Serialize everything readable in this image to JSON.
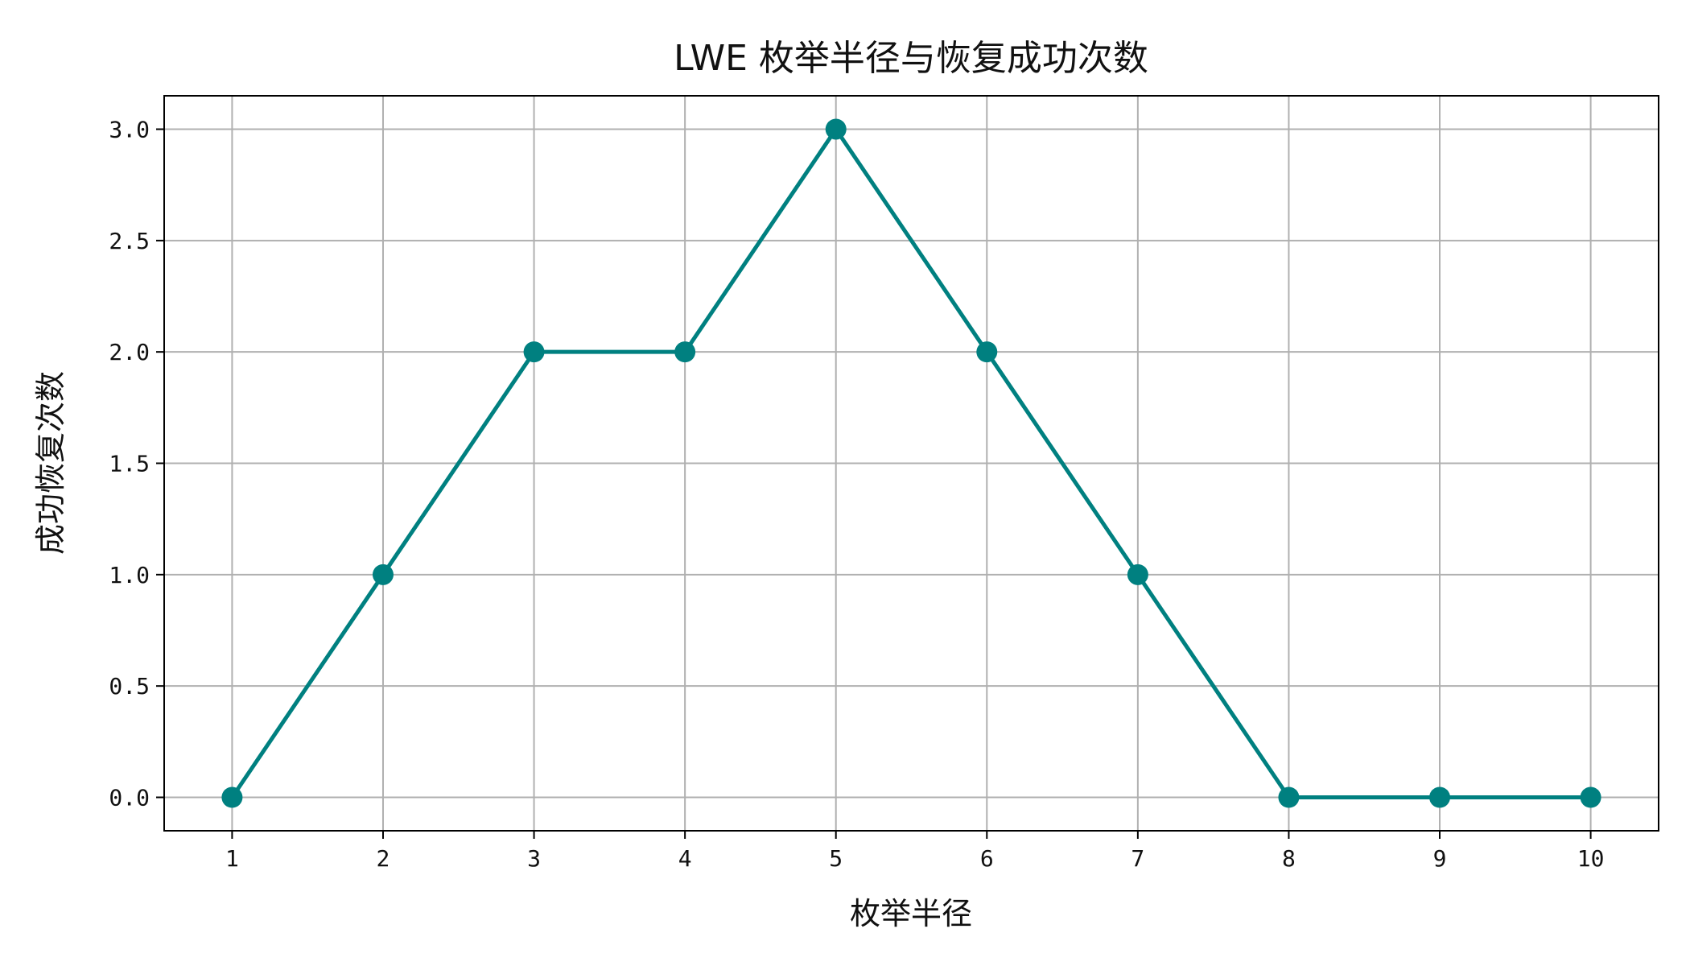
{
  "chart_data": {
    "type": "line",
    "title": "LWE 枚举半径与恢复成功次数",
    "xlabel": "枚举半径",
    "ylabel": "成功恢复次数",
    "x": [
      1,
      2,
      3,
      4,
      5,
      6,
      7,
      8,
      9,
      10
    ],
    "series": [
      {
        "values": [
          0,
          1,
          2,
          2,
          3,
          2,
          1,
          0,
          0,
          0
        ],
        "color": "#008080",
        "marker": "circle"
      }
    ],
    "xlim": [
      0.55,
      10.45
    ],
    "ylim": [
      -0.15,
      3.15
    ],
    "xticks": [
      1,
      2,
      3,
      4,
      5,
      6,
      7,
      8,
      9,
      10
    ],
    "xtick_labels": [
      "1",
      "2",
      "3",
      "4",
      "5",
      "6",
      "7",
      "8",
      "9",
      "10"
    ],
    "yticks": [
      0,
      0.5,
      1,
      1.5,
      2,
      2.5,
      3
    ],
    "ytick_labels": [
      "0.0",
      "0.5",
      "1.0",
      "1.5",
      "2.0",
      "2.5",
      "3.0"
    ],
    "grid": true,
    "legend": "none"
  }
}
